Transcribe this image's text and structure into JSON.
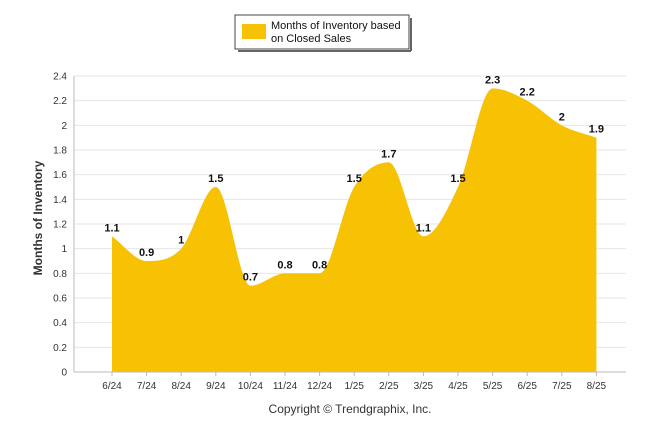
{
  "chart_data": {
    "type": "area",
    "ylabel": "Months of Inventory",
    "ylim": [
      0,
      2.4
    ],
    "yticks": [
      "0",
      "0.2",
      "0.4",
      "0.6",
      "0.8",
      "1",
      "1.2",
      "1.4",
      "1.6",
      "1.8",
      "2",
      "2.2",
      "2.4"
    ],
    "categories": [
      "6/24",
      "7/24",
      "8/24",
      "9/24",
      "10/24",
      "11/24",
      "12/24",
      "1/25",
      "2/25",
      "3/25",
      "4/25",
      "5/25",
      "6/25",
      "7/25",
      "8/25"
    ],
    "series": [
      {
        "name": "Months of Inventory based on Closed Sales",
        "values": [
          1.1,
          0.9,
          1,
          1.5,
          0.7,
          0.8,
          0.8,
          1.5,
          1.7,
          1.1,
          1.5,
          2.3,
          2.2,
          2,
          1.9
        ],
        "labels": [
          "1.1",
          "0.9",
          "1",
          "1.5",
          "0.7",
          "0.8",
          "0.8",
          "1.5",
          "1.7",
          "1.1",
          "1.5",
          "2.3",
          "2.2",
          "2",
          "1.9"
        ],
        "color": "#f7c204"
      }
    ],
    "legend": {
      "position": "top-center",
      "lines": [
        "Months of Inventory based",
        "on Closed Sales"
      ]
    },
    "grid": "horizontal"
  },
  "footer": {
    "copyright": "Copyright © Trendgraphix, Inc."
  }
}
